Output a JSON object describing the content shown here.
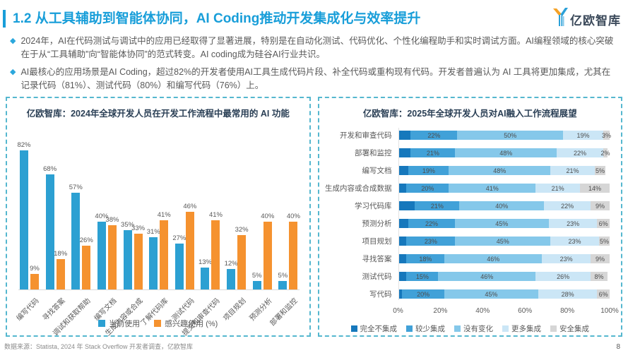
{
  "page": {
    "title": "1.2 从工具辅助到智能体协同，AI Coding推动开发集成化与效率提升",
    "logo_text": "亿欧智库",
    "bullet_marker": "◆",
    "bullets": [
      "2024年，AI在代码测试与调试中的应用已经取得了显著进展，特别是在自动化测试、代码优化、个性化编程助手和实时调试方面。AI编程领域的核心突破在于从“工具辅助”向“智能体协同”的范式转变。AI coding成为硅谷AI行业共识。",
      "AI最核心的应用场景是AI Coding，超过82%的开发者使用AI工具生成代码片段、补全代码或重构现有代码。开发者普遍认为 AI 工具将更加集成，尤其在记录代码（81%）、测试代码（80%）和编写代码（76%）上。"
    ],
    "source_note": "数据来源：Statista, 2024 年 Stack Overflow 开发者调查，亿欧智库",
    "page_number": "8"
  },
  "colors": {
    "title_blue": "#189ED9",
    "panel_border": "#55B7CF",
    "bar_blue": "#2CA0D2",
    "bar_orange": "#F5922F"
  },
  "chart_data": [
    {
      "type": "bar",
      "title": "亿欧智库：2024年全球开发人员在开发工作流程中最常用的 AI 功能",
      "categories": [
        "编写代码",
        "寻找答案",
        "调试和获取帮助",
        "编写文档",
        "生成内容或合成",
        "了解代码库",
        "测试代码",
        "提交和审查代码",
        "项目规划",
        "预测分析",
        "部署和监控"
      ],
      "series": [
        {
          "name": "当前使用",
          "color": "#2CA0D2",
          "values": [
            82,
            68,
            57,
            40,
            35,
            31,
            27,
            13,
            12,
            5,
            5
          ]
        },
        {
          "name": "感兴趣使用 (%)",
          "color": "#F5922F",
          "values": [
            9,
            18,
            26,
            38,
            33,
            41,
            46,
            41,
            32,
            40,
            40
          ]
        }
      ],
      "ylim": [
        0,
        100
      ],
      "value_suffix": "%",
      "grid": false,
      "legend_position": "bottom"
    },
    {
      "type": "stacked-bar-horizontal",
      "title": "亿欧智库：2025年全球开发人员对AI融入工作流程展望",
      "categories": [
        "开发和审查代码",
        "部署和监控",
        "编写文档",
        "生成内容或合成数据",
        "学习代码库",
        "预测分析",
        "项目规划",
        "寻找答案",
        "测试代码",
        "写代码"
      ],
      "x_ticks": [
        "0%",
        "20%",
        "40%",
        "60%",
        "80%",
        "100%"
      ],
      "xlim": [
        0,
        100
      ],
      "value_suffix": "%",
      "legend_position": "bottom",
      "series": [
        {
          "name": "完全不集成",
          "color": "#1678BC",
          "labeled": false,
          "values": [
            6,
            6,
            5,
            4,
            8,
            5,
            4,
            4,
            4,
            2
          ]
        },
        {
          "name": "较少集成",
          "color": "#41A1D8",
          "labeled": true,
          "values": [
            22,
            21,
            19,
            20,
            21,
            22,
            23,
            18,
            15,
            20
          ]
        },
        {
          "name": "没有变化",
          "color": "#85C8EA",
          "labeled": true,
          "values": [
            50,
            48,
            48,
            41,
            40,
            45,
            45,
            46,
            46,
            45
          ]
        },
        {
          "name": "更多集成",
          "color": "#CBE6F6",
          "labeled": true,
          "values": [
            19,
            22,
            21,
            21,
            22,
            23,
            23,
            23,
            26,
            28
          ]
        },
        {
          "name": "安全集成",
          "color": "#D6D6D6",
          "labeled": true,
          "values": [
            3,
            2,
            5,
            14,
            9,
            6,
            5,
            9,
            8,
            6
          ]
        }
      ]
    }
  ]
}
